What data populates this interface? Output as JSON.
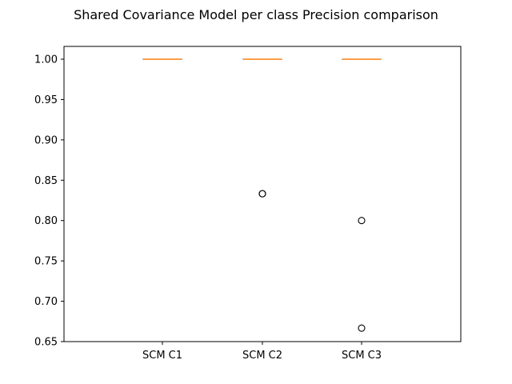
{
  "chart_data": {
    "type": "box",
    "title": "Shared Covariance Model per class Precision comparison",
    "xlabel": "",
    "ylabel": "",
    "ylim": [
      0.65,
      1.0
    ],
    "yticks": [
      "0.65",
      "0.70",
      "0.75",
      "0.80",
      "0.85",
      "0.90",
      "0.95",
      "1.00"
    ],
    "grid": false,
    "categories": [
      "SCM C1",
      "SCM C2",
      "SCM C3"
    ],
    "boxes": [
      {
        "name": "SCM C1",
        "q1": 1.0,
        "median": 1.0,
        "q3": 1.0,
        "whisker_low": 1.0,
        "whisker_high": 1.0,
        "outliers": []
      },
      {
        "name": "SCM C2",
        "q1": 1.0,
        "median": 1.0,
        "q3": 1.0,
        "whisker_low": 1.0,
        "whisker_high": 1.0,
        "outliers": [
          0.8333,
          0.8333
        ]
      },
      {
        "name": "SCM C3",
        "q1": 1.0,
        "median": 1.0,
        "q3": 1.0,
        "whisker_low": 1.0,
        "whisker_high": 1.0,
        "outliers": [
          0.8,
          0.6667
        ]
      }
    ],
    "colors": {
      "median": "#ff7f0e",
      "box": "#000000",
      "outlier_edge": "#000000",
      "axis": "#000000"
    }
  }
}
